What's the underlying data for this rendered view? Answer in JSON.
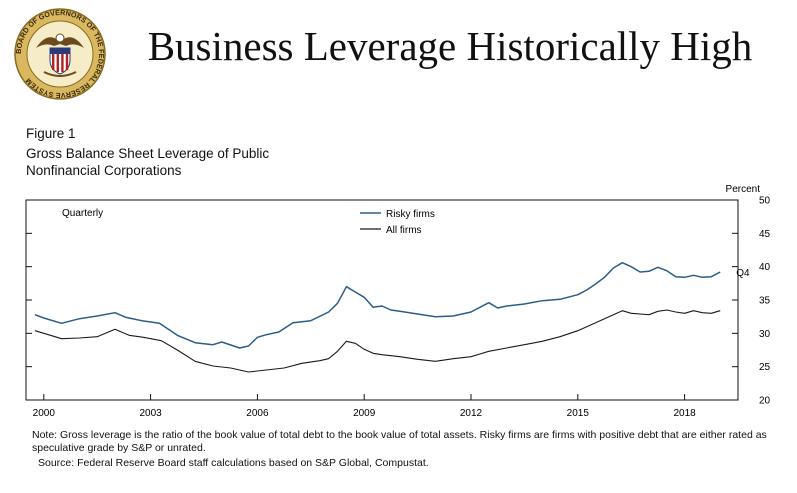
{
  "slide": {
    "title": "Business Leverage Historically High",
    "seal_text": "BOARD OF GOVERNORS OF THE FEDERAL RESERVE SYSTEM"
  },
  "figure": {
    "label": "Figure 1",
    "title_line1": "Gross Balance Sheet Leverage of Public",
    "title_line2": "Nonfinancial Corporations",
    "note": "Note: Gross leverage is the ratio of the book value of total debt to the book value of total assets. Risky firms are firms with positive debt that are either rated as speculative grade by S&P or unrated.",
    "source": "Source: Federal Reserve Board staff calculations based on S&P Global, Compustat."
  },
  "chart_data": {
    "type": "line",
    "frequency_label": "Quarterly",
    "ylabel": "Percent",
    "ylim": [
      20,
      50
    ],
    "yticks": [
      20,
      25,
      30,
      35,
      40,
      45,
      50
    ],
    "xlim": [
      1999.5,
      2019.5
    ],
    "xticks": [
      2000,
      2003,
      2006,
      2009,
      2012,
      2015,
      2018
    ],
    "end_label": "Q4",
    "colors": {
      "risky": "#2a5d8a",
      "all": "#1a1a1a",
      "axis": "#111111"
    },
    "series": [
      {
        "name": "Risky firms",
        "x": [
          1999.75,
          2000.0,
          2000.5,
          2001.0,
          2001.5,
          2002.0,
          2002.3,
          2002.75,
          2003.25,
          2003.75,
          2004.25,
          2004.75,
          2005.0,
          2005.5,
          2005.75,
          2006.0,
          2006.25,
          2006.6,
          2007.0,
          2007.5,
          2008.0,
          2008.25,
          2008.5,
          2008.75,
          2009.0,
          2009.25,
          2009.5,
          2009.75,
          2010.0,
          2010.5,
          2011.0,
          2011.5,
          2012.0,
          2012.25,
          2012.5,
          2012.75,
          2013.0,
          2013.5,
          2014.0,
          2014.5,
          2015.0,
          2015.25,
          2015.5,
          2015.75,
          2016.0,
          2016.25,
          2016.5,
          2016.75,
          2017.0,
          2017.25,
          2017.5,
          2017.75,
          2018.0,
          2018.25,
          2018.5,
          2018.75,
          2019.0
        ],
        "values": [
          32.8,
          32.3,
          31.5,
          32.2,
          32.6,
          33.1,
          32.4,
          31.9,
          31.5,
          29.7,
          28.6,
          28.3,
          28.7,
          27.8,
          28.1,
          29.4,
          29.8,
          30.2,
          31.6,
          31.9,
          33.2,
          34.5,
          37.0,
          36.2,
          35.4,
          33.9,
          34.1,
          33.5,
          33.3,
          32.9,
          32.5,
          32.6,
          33.2,
          33.9,
          34.6,
          33.8,
          34.1,
          34.4,
          34.9,
          35.1,
          35.8,
          36.5,
          37.4,
          38.4,
          39.8,
          40.6,
          40.0,
          39.2,
          39.3,
          39.9,
          39.4,
          38.5,
          38.4,
          38.7,
          38.4,
          38.5,
          39.2
        ]
      },
      {
        "name": "All firms",
        "x": [
          1999.75,
          2000.0,
          2000.5,
          2001.0,
          2001.5,
          2002.0,
          2002.4,
          2002.8,
          2003.3,
          2003.75,
          2004.25,
          2004.75,
          2005.25,
          2005.75,
          2006.25,
          2006.75,
          2007.25,
          2007.75,
          2008.0,
          2008.25,
          2008.5,
          2008.75,
          2009.0,
          2009.25,
          2009.5,
          2010.0,
          2010.5,
          2011.0,
          2011.5,
          2012.0,
          2012.25,
          2012.5,
          2013.0,
          2013.5,
          2014.0,
          2014.5,
          2015.0,
          2015.5,
          2016.0,
          2016.25,
          2016.5,
          2016.75,
          2017.0,
          2017.25,
          2017.5,
          2017.75,
          2018.0,
          2018.25,
          2018.5,
          2018.75,
          2019.0
        ],
        "values": [
          30.4,
          30.0,
          29.2,
          29.3,
          29.5,
          30.6,
          29.7,
          29.4,
          28.9,
          27.5,
          25.8,
          25.1,
          24.8,
          24.2,
          24.5,
          24.8,
          25.5,
          25.9,
          26.2,
          27.3,
          28.8,
          28.5,
          27.6,
          27.0,
          26.8,
          26.5,
          26.1,
          25.8,
          26.2,
          26.5,
          26.9,
          27.3,
          27.8,
          28.3,
          28.8,
          29.5,
          30.4,
          31.6,
          32.8,
          33.4,
          33.0,
          32.9,
          32.8,
          33.3,
          33.5,
          33.2,
          33.0,
          33.4,
          33.1,
          33.0,
          33.4
        ]
      }
    ]
  }
}
